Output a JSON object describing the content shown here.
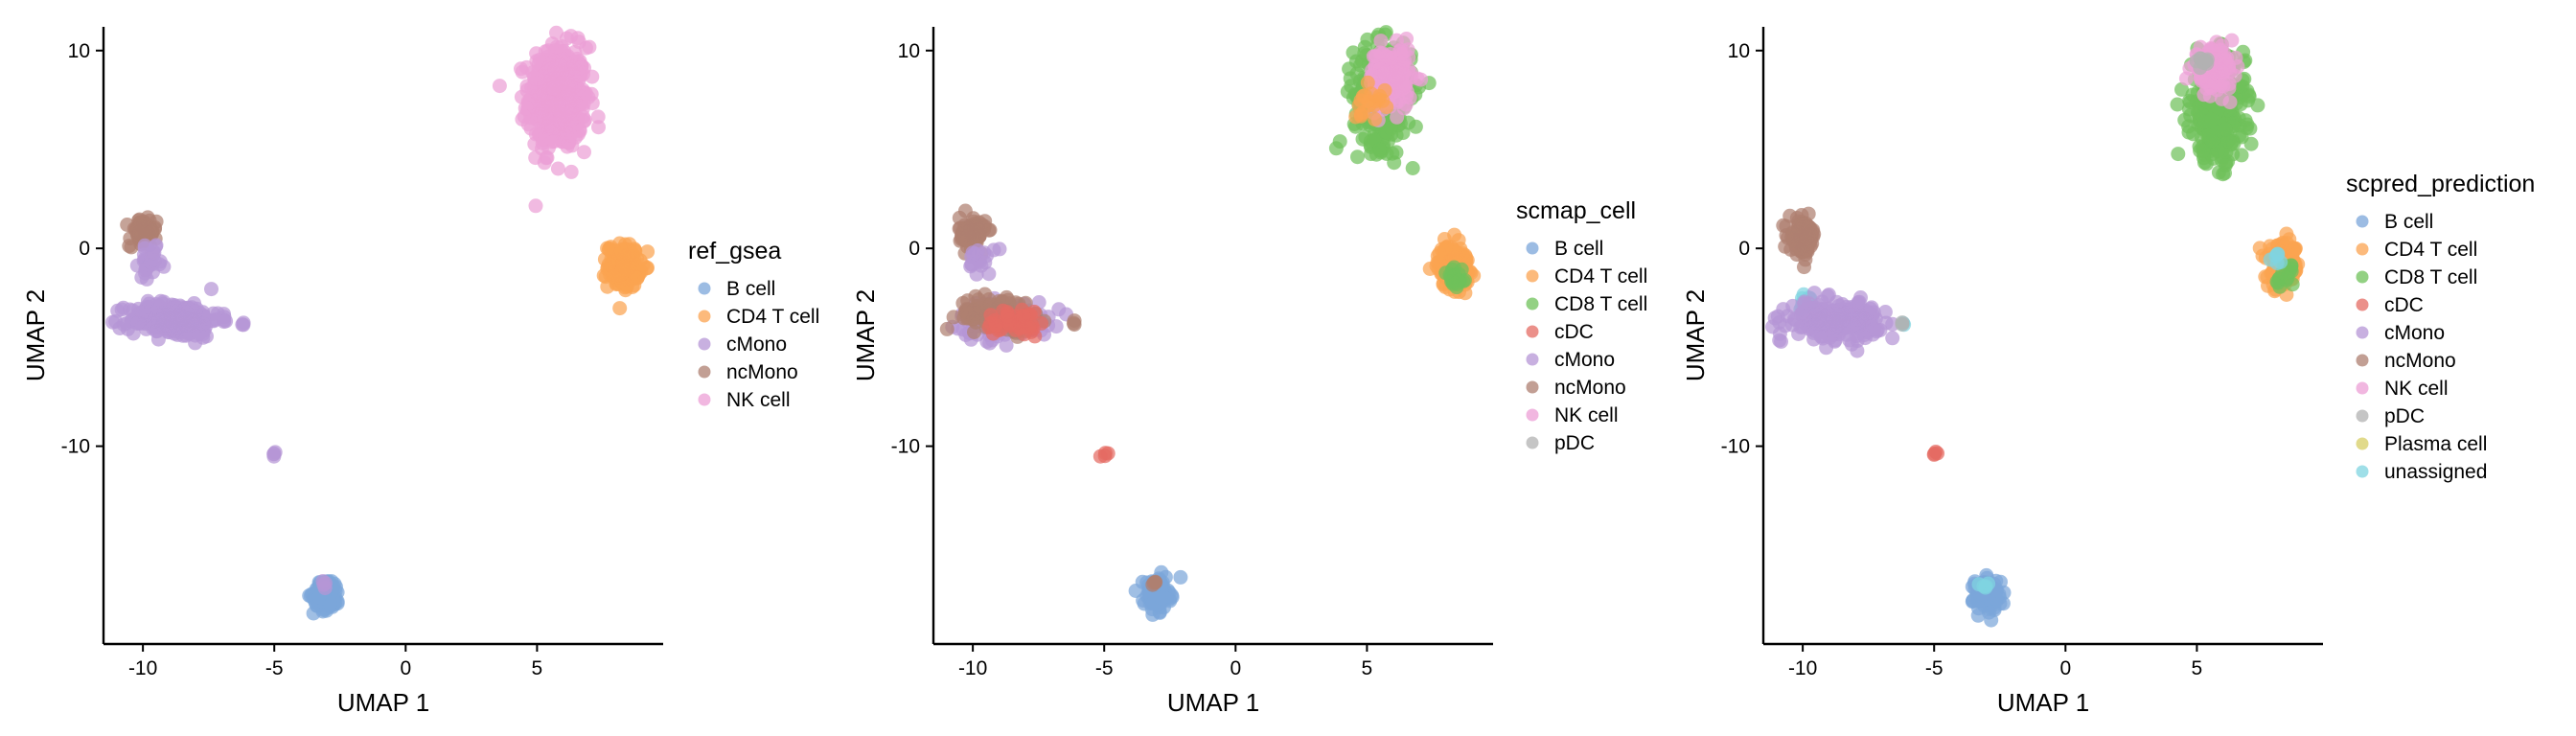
{
  "colors": {
    "B cell": "#7ba6da",
    "CD4 T cell": "#fba350",
    "CD8 T cell": "#6fc15a",
    "cDC": "#e46b63",
    "cMono": "#b596d6",
    "ncMono": "#ae7f70",
    "NK cell": "#ec9fd6",
    "pDC": "#b1b1b1",
    "Plasma cell": "#d7cd64",
    "unassigned": "#7fd4e0"
  },
  "chart_data": [
    {
      "type": "scatter",
      "xlabel": "UMAP 1",
      "ylabel": "UMAP 2",
      "xlim": [
        -11.5,
        9.8
      ],
      "ylim": [
        -20.0,
        11.2
      ],
      "xticks": [
        -10,
        -5,
        0,
        5
      ],
      "yticks": [
        10,
        0,
        -10
      ],
      "legend_title": "ref_gsea",
      "legend_placement": "right",
      "legend": [
        "B cell",
        "CD4 T cell",
        "cMono",
        "ncMono",
        "NK cell"
      ],
      "clusters": [
        {
          "label": "NK cell",
          "cx": 5.8,
          "cy": 7.6,
          "sx": 0.55,
          "sy": 1.3,
          "n": 520
        },
        {
          "label": "CD4 T cell",
          "cx": 8.3,
          "cy": -0.9,
          "sx": 0.3,
          "sy": 0.55,
          "n": 150
        },
        {
          "label": "ncMono",
          "cx": -10.0,
          "cy": 0.8,
          "sx": 0.25,
          "sy": 0.35,
          "n": 90
        },
        {
          "label": "cMono",
          "cx": -9.7,
          "cy": -0.7,
          "sx": 0.22,
          "sy": 0.35,
          "n": 30
        },
        {
          "label": "cMono",
          "cx": -8.8,
          "cy": -3.6,
          "sx": 0.85,
          "sy": 0.45,
          "n": 270
        },
        {
          "label": "cMono",
          "cx": -6.2,
          "cy": -3.8,
          "sx": 0.05,
          "sy": 0.05,
          "n": 3
        },
        {
          "label": "cMono",
          "cx": -5.0,
          "cy": -10.4,
          "sx": 0.07,
          "sy": 0.07,
          "n": 4
        },
        {
          "label": "B cell",
          "cx": -3.0,
          "cy": -17.5,
          "sx": 0.25,
          "sy": 0.4,
          "n": 110
        },
        {
          "label": "cMono",
          "cx": -3.1,
          "cy": -17.0,
          "sx": 0.08,
          "sy": 0.08,
          "n": 4
        }
      ]
    },
    {
      "type": "scatter",
      "xlabel": "UMAP 1",
      "ylabel": "UMAP 2",
      "xlim": [
        -11.5,
        9.8
      ],
      "ylim": [
        -20.0,
        11.2
      ],
      "xticks": [
        -10,
        -5,
        0,
        5
      ],
      "yticks": [
        10,
        0,
        -10
      ],
      "legend_title": "scmap_cell",
      "legend_placement": "right",
      "legend": [
        "B cell",
        "CD4 T cell",
        "CD8 T cell",
        "cDC",
        "cMono",
        "ncMono",
        "NK cell",
        "pDC"
      ],
      "clusters": [
        {
          "label": "CD8 T cell",
          "cx": 5.6,
          "cy": 7.8,
          "sx": 0.55,
          "sy": 1.3,
          "n": 330
        },
        {
          "label": "NK cell",
          "cx": 5.9,
          "cy": 8.6,
          "sx": 0.4,
          "sy": 0.8,
          "n": 160
        },
        {
          "label": "CD4 T cell",
          "cx": 5.1,
          "cy": 7.5,
          "sx": 0.3,
          "sy": 0.5,
          "n": 20
        },
        {
          "label": "CD4 T cell",
          "cx": 8.3,
          "cy": -0.9,
          "sx": 0.3,
          "sy": 0.55,
          "n": 140
        },
        {
          "label": "CD8 T cell",
          "cx": 8.4,
          "cy": -1.5,
          "sx": 0.2,
          "sy": 0.4,
          "n": 20
        },
        {
          "label": "ncMono",
          "cx": -10.0,
          "cy": 0.8,
          "sx": 0.25,
          "sy": 0.4,
          "n": 80
        },
        {
          "label": "cMono",
          "cx": -9.7,
          "cy": -0.5,
          "sx": 0.25,
          "sy": 0.4,
          "n": 20
        },
        {
          "label": "cMono",
          "cx": -8.8,
          "cy": -3.6,
          "sx": 0.85,
          "sy": 0.45,
          "n": 190
        },
        {
          "label": "ncMono",
          "cx": -9.1,
          "cy": -3.3,
          "sx": 0.7,
          "sy": 0.45,
          "n": 110
        },
        {
          "label": "cDC",
          "cx": -8.3,
          "cy": -3.7,
          "sx": 0.6,
          "sy": 0.4,
          "n": 40
        },
        {
          "label": "ncMono",
          "cx": -6.2,
          "cy": -3.8,
          "sx": 0.05,
          "sy": 0.05,
          "n": 3
        },
        {
          "label": "cDC",
          "cx": -5.0,
          "cy": -10.4,
          "sx": 0.07,
          "sy": 0.07,
          "n": 4
        },
        {
          "label": "B cell",
          "cx": -3.0,
          "cy": -17.5,
          "sx": 0.25,
          "sy": 0.4,
          "n": 110
        },
        {
          "label": "ncMono",
          "cx": -3.1,
          "cy": -17.0,
          "sx": 0.08,
          "sy": 0.08,
          "n": 4
        }
      ]
    },
    {
      "type": "scatter",
      "xlabel": "UMAP 1",
      "ylabel": "UMAP 2",
      "xlim": [
        -11.5,
        9.8
      ],
      "ylim": [
        -20.0,
        11.2
      ],
      "xticks": [
        -10,
        -5,
        0,
        5
      ],
      "yticks": [
        10,
        0,
        -10
      ],
      "legend_title": "scpred_prediction",
      "legend_placement": "right",
      "legend": [
        "B cell",
        "CD4 T cell",
        "CD8 T cell",
        "cDC",
        "cMono",
        "ncMono",
        "NK cell",
        "pDC",
        "Plasma cell",
        "unassigned"
      ],
      "clusters": [
        {
          "label": "CD8 T cell",
          "cx": 5.8,
          "cy": 7.0,
          "sx": 0.5,
          "sy": 1.3,
          "n": 380
        },
        {
          "label": "NK cell",
          "cx": 5.6,
          "cy": 9.1,
          "sx": 0.4,
          "sy": 0.5,
          "n": 110
        },
        {
          "label": "pDC",
          "cx": 5.2,
          "cy": 9.5,
          "sx": 0.15,
          "sy": 0.2,
          "n": 10
        },
        {
          "label": "CD4 T cell",
          "cx": 8.3,
          "cy": -0.9,
          "sx": 0.3,
          "sy": 0.55,
          "n": 140
        },
        {
          "label": "CD8 T cell",
          "cx": 8.4,
          "cy": -1.6,
          "sx": 0.2,
          "sy": 0.4,
          "n": 15
        },
        {
          "label": "unassigned",
          "cx": 8.1,
          "cy": -0.5,
          "sx": 0.15,
          "sy": 0.3,
          "n": 6
        },
        {
          "label": "ncMono",
          "cx": -10.0,
          "cy": 0.6,
          "sx": 0.25,
          "sy": 0.45,
          "n": 100
        },
        {
          "label": "unassigned",
          "cx": -9.9,
          "cy": -2.7,
          "sx": 0.2,
          "sy": 0.2,
          "n": 15
        },
        {
          "label": "cMono",
          "cx": -8.8,
          "cy": -3.6,
          "sx": 0.85,
          "sy": 0.45,
          "n": 260
        },
        {
          "label": "unassigned",
          "cx": -6.2,
          "cy": -3.8,
          "sx": 0.05,
          "sy": 0.05,
          "n": 2
        },
        {
          "label": "pDC",
          "cx": -6.2,
          "cy": -3.8,
          "sx": 0.05,
          "sy": 0.05,
          "n": 2
        },
        {
          "label": "cDC",
          "cx": -5.0,
          "cy": -10.4,
          "sx": 0.07,
          "sy": 0.07,
          "n": 4
        },
        {
          "label": "B cell",
          "cx": -3.0,
          "cy": -17.5,
          "sx": 0.25,
          "sy": 0.4,
          "n": 110
        },
        {
          "label": "unassigned",
          "cx": -3.1,
          "cy": -17.0,
          "sx": 0.08,
          "sy": 0.08,
          "n": 5
        }
      ]
    }
  ]
}
